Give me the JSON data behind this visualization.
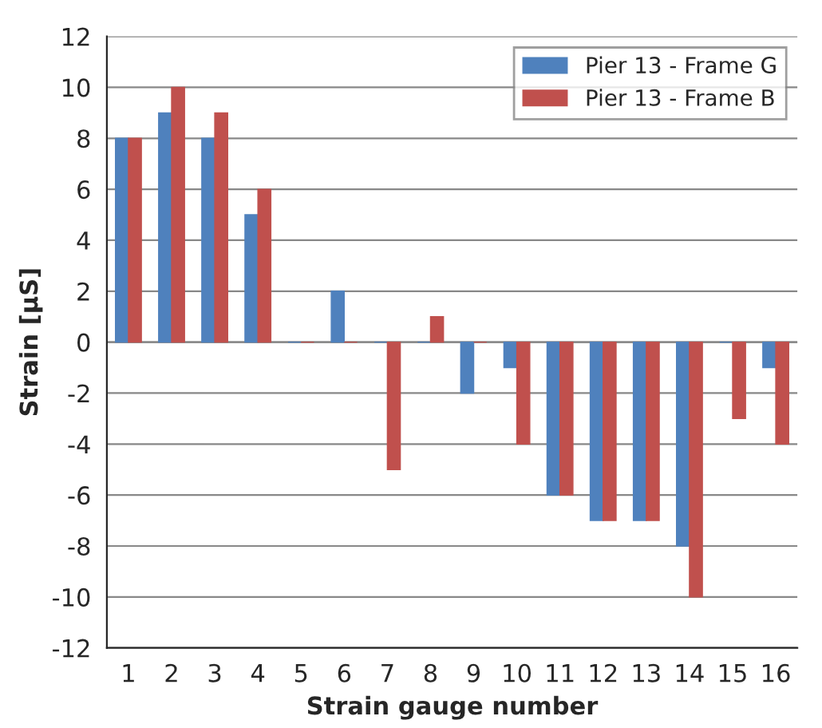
{
  "chart_data": {
    "type": "bar",
    "xlabel": "Strain gauge number",
    "ylabel": "Strain [µS]",
    "categories": [
      "1",
      "2",
      "3",
      "4",
      "5",
      "6",
      "7",
      "8",
      "9",
      "10",
      "11",
      "12",
      "13",
      "14",
      "15",
      "16"
    ],
    "series": [
      {
        "name": "Pier 13 - Frame G",
        "color": "#4f81bd",
        "values": [
          8,
          9,
          8,
          5,
          0,
          2,
          0,
          0,
          -2,
          -1,
          -6,
          -7,
          -7,
          -8,
          0,
          -1
        ]
      },
      {
        "name": "Pier 13 - Frame B",
        "color": "#c0504d",
        "values": [
          8,
          10,
          9,
          6,
          0,
          0,
          -5,
          1,
          0,
          -4,
          -6,
          -7,
          -7,
          -10,
          -3,
          -4
        ]
      }
    ],
    "ylim": [
      -12,
      12
    ],
    "yticks": [
      -12,
      -10,
      -8,
      -6,
      -4,
      -2,
      0,
      2,
      4,
      6,
      8,
      10,
      12
    ],
    "grid": "y",
    "legend": "top right"
  }
}
